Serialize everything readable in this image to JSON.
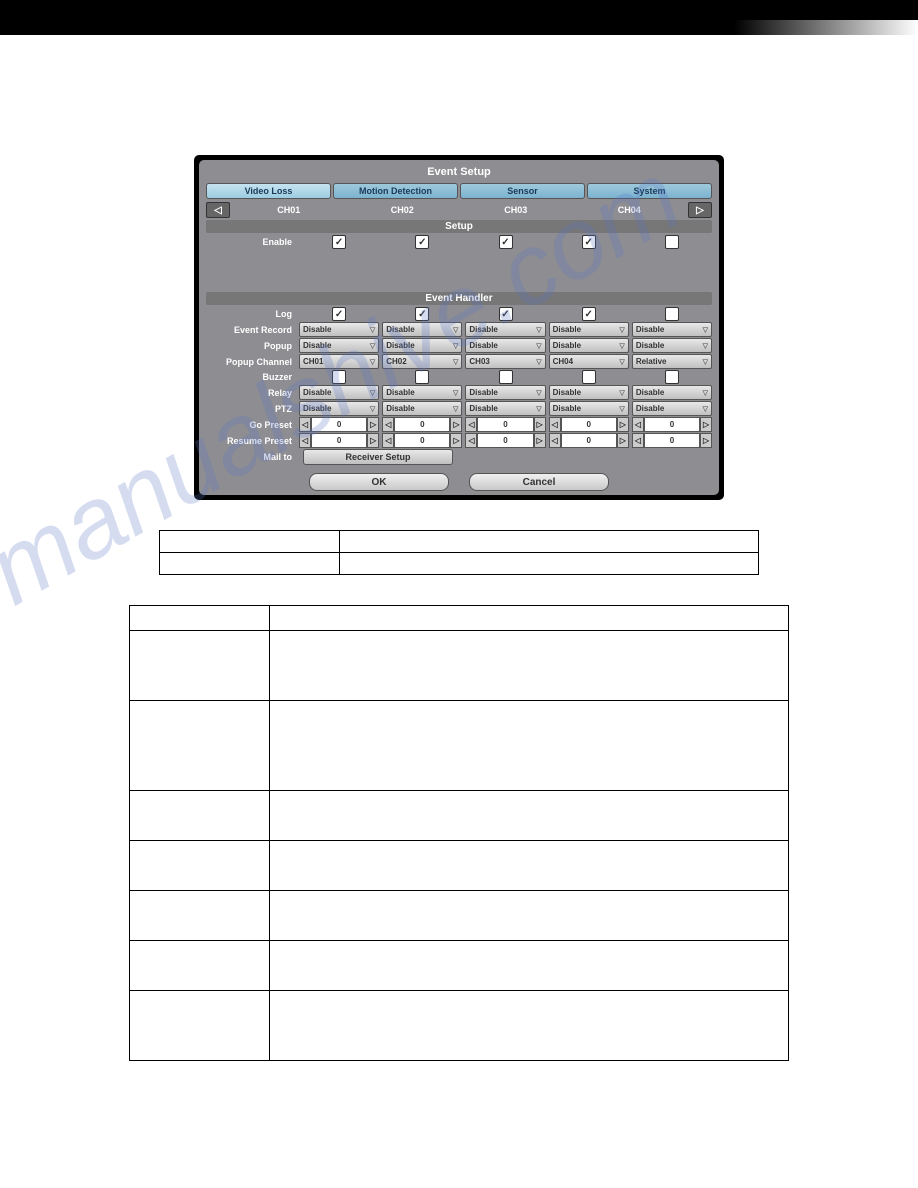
{
  "screenshot": {
    "title": "Event Setup",
    "tabs": [
      "Video Loss",
      "Motion Detection",
      "Sensor",
      "System"
    ],
    "channels": [
      "CH01",
      "CH02",
      "CH03",
      "CH04"
    ],
    "setup_header": "Setup",
    "handler_header": "Event Handler",
    "mail_to": "Mail to",
    "receiver_btn": "Receiver Setup",
    "ok_btn": "OK",
    "cancel_btn": "Cancel",
    "rows": {
      "enable": {
        "label": "Enable",
        "type": "check",
        "vals": [
          "✓",
          "✓",
          "✓",
          "✓",
          ""
        ]
      },
      "log": {
        "label": "Log",
        "type": "check",
        "vals": [
          "✓",
          "✓",
          "✓",
          "✓",
          ""
        ]
      },
      "event_record": {
        "label": "Event Record",
        "type": "dd",
        "vals": [
          "Disable",
          "Disable",
          "Disable",
          "Disable",
          "Disable"
        ]
      },
      "popup": {
        "label": "Popup",
        "type": "dd",
        "vals": [
          "Disable",
          "Disable",
          "Disable",
          "Disable",
          "Disable"
        ]
      },
      "popup_channel": {
        "label": "Popup Channel",
        "type": "dd",
        "vals": [
          "CH01",
          "CH02",
          "CH03",
          "CH04",
          "Relative"
        ]
      },
      "buzzer": {
        "label": "Buzzer",
        "type": "check",
        "vals": [
          "",
          "",
          "",
          "",
          ""
        ]
      },
      "relay": {
        "label": "Relay",
        "type": "dd",
        "vals": [
          "Disable",
          "Disable",
          "Disable",
          "Disable",
          "Disable"
        ]
      },
      "ptz": {
        "label": "PTZ",
        "type": "dd",
        "vals": [
          "Disable",
          "Disable",
          "Disable",
          "Disable",
          "Disable"
        ]
      },
      "go_preset": {
        "label": "Go Preset",
        "type": "spin",
        "vals": [
          "0",
          "0",
          "0",
          "0",
          "0"
        ]
      },
      "resume_preset": {
        "label": "Resume Preset",
        "type": "spin",
        "vals": [
          "0",
          "0",
          "0",
          "0",
          "0"
        ]
      }
    }
  },
  "table1_rows": 2,
  "table2_heights": [
    25,
    70,
    90,
    50,
    50,
    50,
    50,
    70
  ]
}
